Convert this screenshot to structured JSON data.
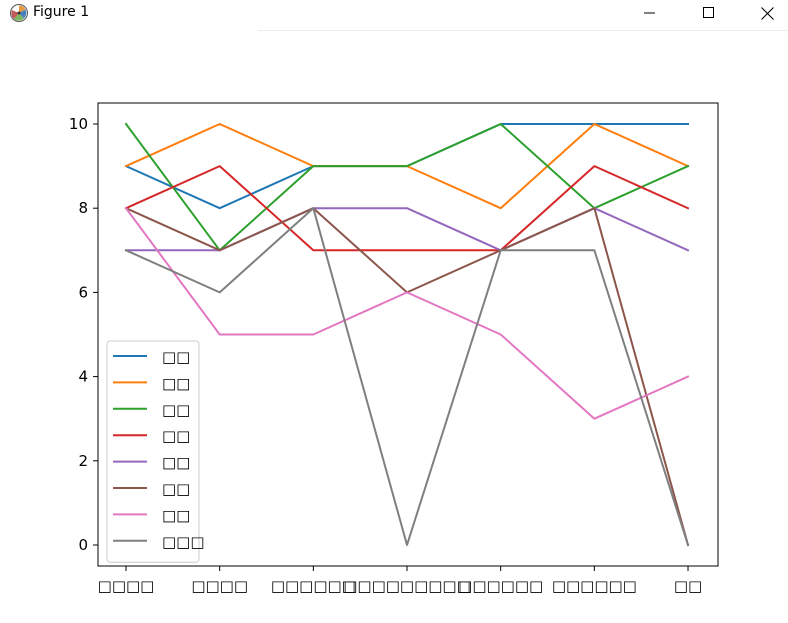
{
  "window": {
    "title": "Figure 1",
    "icons": [
      "matplotlib-logo-icon",
      "minimize-icon",
      "maximize-icon",
      "close-icon"
    ]
  },
  "chart_data": {
    "type": "line",
    "categories": [
      "□□□□",
      "□□□□",
      "□□□□□□",
      "□□□□□□□□□",
      "□□□□□□",
      "□□□□□□",
      "□□"
    ],
    "ylim": [
      -0.5,
      10.5
    ],
    "yticks": [
      0,
      2,
      4,
      6,
      8,
      10
    ],
    "grid": false,
    "legend_position": "lower-left",
    "series": [
      {
        "name": "□□",
        "color": "#1f77b4",
        "values": [
          9,
          8,
          9,
          9,
          10,
          10,
          10
        ]
      },
      {
        "name": "□□",
        "color": "#ff7f0e",
        "values": [
          9,
          10,
          9,
          9,
          8,
          10,
          9
        ]
      },
      {
        "name": "□□",
        "color": "#2ca02c",
        "values": [
          10,
          7,
          9,
          9,
          10,
          8,
          9
        ]
      },
      {
        "name": "□□",
        "color": "#d62728",
        "values": [
          8,
          9,
          7,
          7,
          7,
          9,
          8
        ]
      },
      {
        "name": "□□",
        "color": "#9467bd",
        "values": [
          7,
          7,
          8,
          8,
          7,
          8,
          7
        ]
      },
      {
        "name": "□□",
        "color": "#8c564b",
        "values": [
          8,
          7,
          8,
          6,
          7,
          8,
          0
        ]
      },
      {
        "name": "□□",
        "color": "#e377c2",
        "values": [
          8,
          5,
          5,
          6,
          5,
          3,
          4
        ]
      },
      {
        "name": "□□□",
        "color": "#7f7f7f",
        "values": [
          7,
          6,
          8,
          0,
          7,
          7,
          0
        ]
      }
    ]
  }
}
